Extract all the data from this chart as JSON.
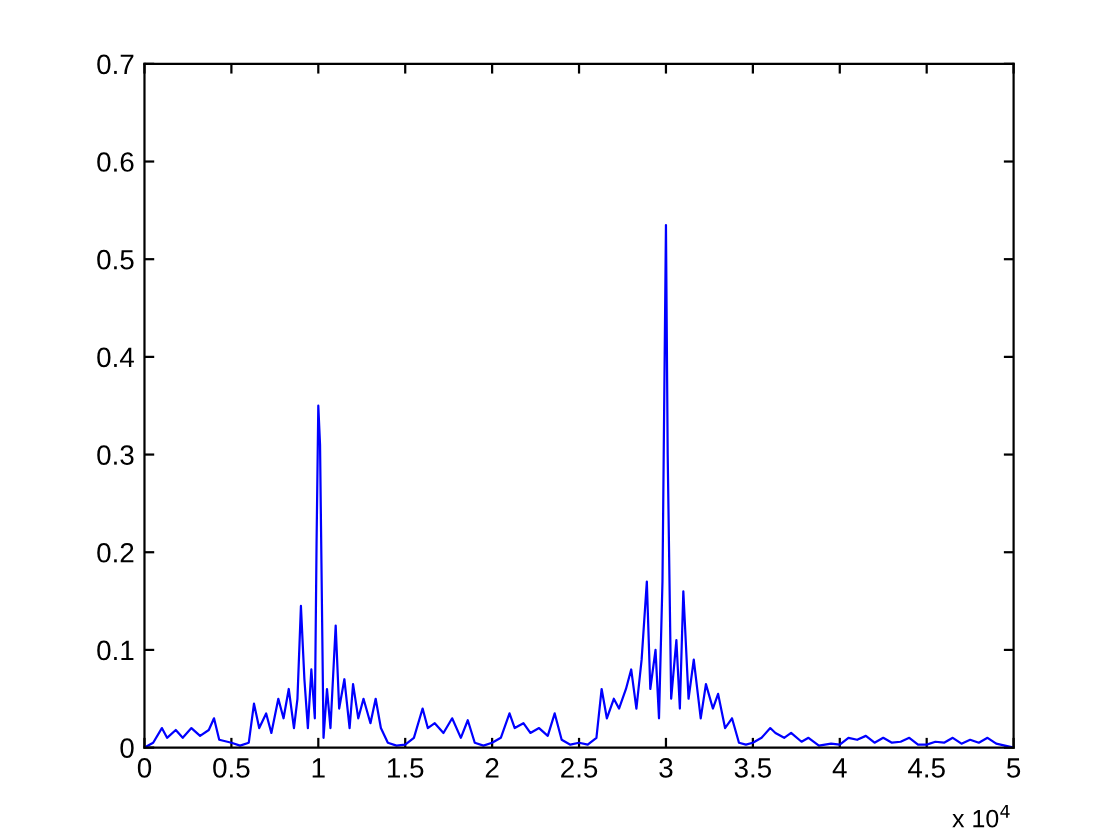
{
  "chart_data": {
    "type": "line",
    "x": [
      0,
      0.05,
      0.1,
      0.13,
      0.18,
      0.22,
      0.27,
      0.32,
      0.37,
      0.4,
      0.43,
      0.5,
      0.55,
      0.6,
      0.63,
      0.66,
      0.7,
      0.73,
      0.77,
      0.8,
      0.83,
      0.86,
      0.88,
      0.9,
      0.92,
      0.94,
      0.96,
      0.98,
      0.99,
      1.0,
      1.01,
      1.03,
      1.05,
      1.07,
      1.1,
      1.12,
      1.15,
      1.18,
      1.2,
      1.23,
      1.26,
      1.3,
      1.33,
      1.36,
      1.4,
      1.45,
      1.5,
      1.55,
      1.6,
      1.63,
      1.67,
      1.72,
      1.77,
      1.82,
      1.86,
      1.9,
      1.95,
      2.0,
      2.05,
      2.1,
      2.13,
      2.18,
      2.22,
      2.27,
      2.32,
      2.36,
      2.4,
      2.45,
      2.5,
      2.55,
      2.6,
      2.63,
      2.66,
      2.7,
      2.73,
      2.77,
      2.8,
      2.83,
      2.86,
      2.89,
      2.91,
      2.94,
      2.96,
      2.98,
      3.0,
      3.01,
      3.03,
      3.06,
      3.08,
      3.1,
      3.13,
      3.16,
      3.2,
      3.23,
      3.27,
      3.3,
      3.34,
      3.38,
      3.42,
      3.46,
      3.5,
      3.55,
      3.6,
      3.63,
      3.68,
      3.72,
      3.78,
      3.82,
      3.88,
      3.95,
      4.0,
      4.05,
      4.1,
      4.15,
      4.2,
      4.25,
      4.3,
      4.35,
      4.4,
      4.45,
      4.5,
      4.55,
      4.6,
      4.65,
      4.7,
      4.75,
      4.8,
      4.85,
      4.9,
      4.95,
      5.0
    ],
    "series": [
      {
        "color": "#0000ff",
        "values": [
          0,
          0.005,
          0.02,
          0.01,
          0.018,
          0.01,
          0.02,
          0.012,
          0.018,
          0.03,
          0.008,
          0.005,
          0.002,
          0.005,
          0.045,
          0.02,
          0.035,
          0.015,
          0.05,
          0.03,
          0.06,
          0.02,
          0.05,
          0.145,
          0.07,
          0.02,
          0.08,
          0.03,
          0.21,
          0.35,
          0.31,
          0.01,
          0.06,
          0.02,
          0.125,
          0.04,
          0.07,
          0.02,
          0.065,
          0.03,
          0.05,
          0.025,
          0.05,
          0.02,
          0.005,
          0.002,
          0.003,
          0.01,
          0.04,
          0.02,
          0.025,
          0.015,
          0.03,
          0.01,
          0.028,
          0.005,
          0.002,
          0.005,
          0.01,
          0.035,
          0.02,
          0.025,
          0.015,
          0.02,
          0.012,
          0.035,
          0.008,
          0.003,
          0.005,
          0.003,
          0.01,
          0.06,
          0.03,
          0.05,
          0.04,
          0.06,
          0.08,
          0.04,
          0.09,
          0.17,
          0.06,
          0.1,
          0.03,
          0.17,
          0.535,
          0.3,
          0.05,
          0.11,
          0.04,
          0.16,
          0.05,
          0.09,
          0.03,
          0.065,
          0.04,
          0.055,
          0.02,
          0.03,
          0.005,
          0.003,
          0.005,
          0.01,
          0.02,
          0.015,
          0.01,
          0.015,
          0.006,
          0.01,
          0.002,
          0.004,
          0.003,
          0.01,
          0.008,
          0.012,
          0.005,
          0.01,
          0.005,
          0.006,
          0.01,
          0.003,
          0.003,
          0.006,
          0.005,
          0.01,
          0.004,
          0.008,
          0.005,
          0.01,
          0.004,
          0.002,
          0
        ]
      }
    ],
    "xlim": [
      0,
      5
    ],
    "xticks": [
      0,
      0.5,
      1,
      1.5,
      2,
      2.5,
      3,
      3.5,
      4,
      4.5,
      5
    ],
    "ylim": [
      0,
      0.7
    ],
    "yticks": [
      0,
      0.1,
      0.2,
      0.3,
      0.4,
      0.5,
      0.6,
      0.7
    ],
    "annotations": [
      "x 10$^{4}$"
    ],
    "grid": false,
    "legend": false,
    "marker": "none",
    "line_style": "solid"
  }
}
